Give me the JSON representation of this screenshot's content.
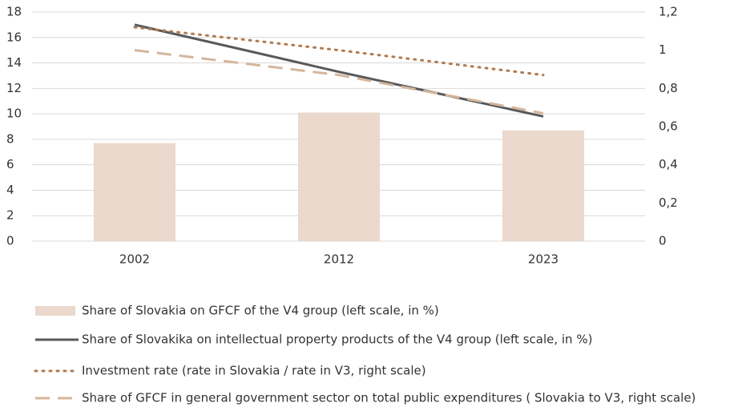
{
  "chart_data": {
    "type": "combo",
    "categories": [
      "2002",
      "2012",
      "2023"
    ],
    "series": [
      {
        "name": "Share of Slovakia on GFCF of the V4 group (left scale, in %)",
        "type": "bar",
        "color": "#ead9cc",
        "values": [
          7.7,
          10.1,
          8.7
        ]
      },
      {
        "name": "Share of Slovakika on intellectual property products of the V4 group (left scale, in %)",
        "type": "line",
        "style": "solid",
        "color": "#58595b",
        "values": [
          17.0,
          13.3,
          9.8
        ]
      },
      {
        "name": "Investment rate (rate in Slovakia / rate in V3, right scale)",
        "type": "line",
        "style": "dotted",
        "color": "#b07a4f",
        "axis": "y2",
        "values": [
          1.12,
          1.0,
          0.87
        ]
      },
      {
        "name": "Share of GFCF in general government sector on total public expenditures ( Slovakia to V3, right scale)",
        "type": "line",
        "style": "dashed",
        "color": "#d4b69c",
        "axis": "y2",
        "values": [
          1.0,
          0.87,
          0.67
        ]
      }
    ],
    "ylim": [
      0,
      18
    ],
    "yticks": [
      0,
      2,
      4,
      6,
      8,
      10,
      12,
      14,
      16,
      18
    ],
    "y2lim": [
      0,
      1.2
    ],
    "y2ticks": [
      0,
      {
        "value": 0.2,
        "label": "0,2"
      },
      {
        "value": 0.4,
        "label": "0,4"
      },
      {
        "value": 0.6,
        "label": "0,6"
      },
      {
        "value": 0.8,
        "label": "0,8"
      },
      1,
      {
        "value": 1.2,
        "label": "1,2"
      }
    ],
    "grid": true,
    "legend": "bottom"
  }
}
